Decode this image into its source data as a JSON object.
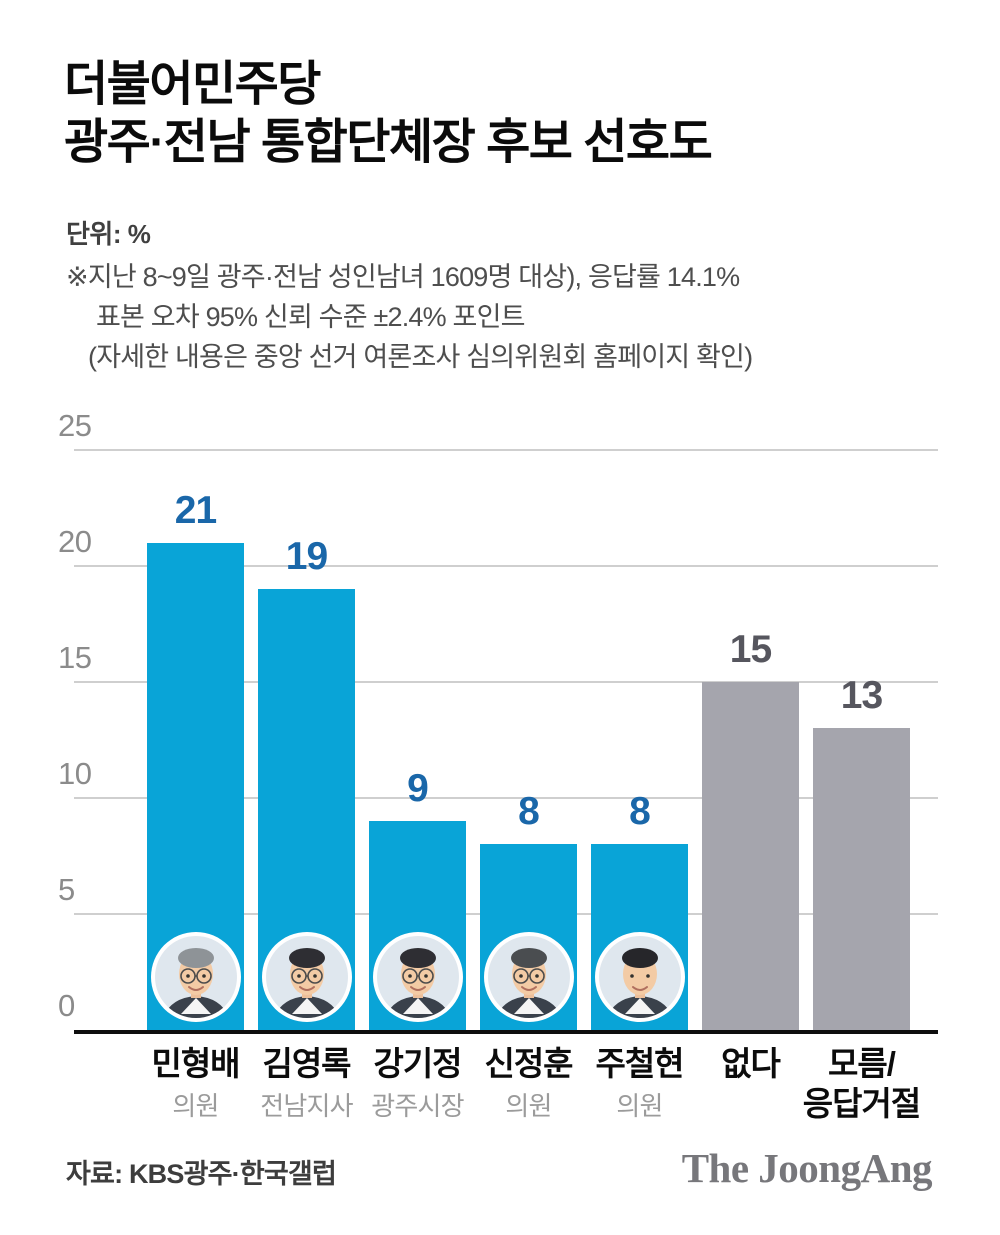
{
  "header": {
    "title_line1": "더불어민주당",
    "title_line2": "광주·전남 통합단체장 후보 선호도",
    "unit_label": "단위: %",
    "notes": [
      "※지난 8~9일 광주·전남 성인남녀 1609명 대상), 응답률 14.1%",
      "표본 오차 95% 신뢰 수준 ±2.4% 포인트",
      "(자세한 내용은 중앙 선거 여론조사 심의위원회 홈페이지 확인)"
    ]
  },
  "chart_data": {
    "type": "bar",
    "title": "더불어민주당 광주·전남 통합단체장 후보 선호도",
    "unit": "%",
    "categories": [
      "민형배",
      "김영록",
      "강기정",
      "신정훈",
      "주철현",
      "없다",
      "모름/\n응답거절"
    ],
    "values": [
      21,
      19,
      9,
      8,
      8,
      15,
      13
    ],
    "sublabels": [
      "의원",
      "전남지사",
      "광주시장",
      "의원",
      "의원",
      "",
      ""
    ],
    "ylim": [
      0,
      25
    ],
    "yticks": [
      0,
      5,
      10,
      15,
      20,
      25
    ],
    "grid": true,
    "legend": "none",
    "bars": [
      {
        "label": "민형배",
        "sublabel": "의원",
        "value": 21,
        "group": "candidate",
        "photo": true,
        "avatar": {
          "hair": "#8e9397",
          "glasses": true
        }
      },
      {
        "label": "김영록",
        "sublabel": "전남지사",
        "value": 19,
        "group": "candidate",
        "photo": true,
        "avatar": {
          "hair": "#2e2e33",
          "glasses": true
        }
      },
      {
        "label": "강기정",
        "sublabel": "광주시장",
        "value": 9,
        "group": "candidate",
        "photo": true,
        "avatar": {
          "hair": "#2e2e33",
          "glasses": true
        }
      },
      {
        "label": "신정훈",
        "sublabel": "의원",
        "value": 8,
        "group": "candidate",
        "photo": true,
        "avatar": {
          "hair": "#4a4d50",
          "glasses": true
        }
      },
      {
        "label": "주철현",
        "sublabel": "의원",
        "value": 8,
        "group": "candidate",
        "photo": true,
        "avatar": {
          "hair": "#26262a",
          "glasses": false
        }
      },
      {
        "label": "없다",
        "sublabel": "",
        "value": 15,
        "group": "no-preference",
        "photo": false
      },
      {
        "label": "모름/\n응답거절",
        "sublabel": "",
        "value": 13,
        "group": "no-preference",
        "photo": false
      }
    ]
  },
  "colors": {
    "bar_candidate": "#09a4d7",
    "bar_neutral": "#a5a5ad",
    "value_candidate": "#1a67a9",
    "value_neutral": "#56565e",
    "gridline": "#cfcfcf",
    "baseline": "#0e0e0e",
    "tick_text": "#8b8b8b"
  },
  "footer": {
    "source": "자료: KBS광주·한국갤럽",
    "logo": "The JoongAng"
  }
}
